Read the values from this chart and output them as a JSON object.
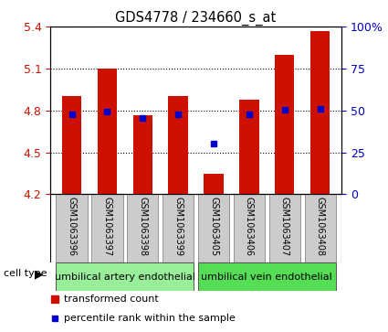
{
  "title": "GDS4778 / 234660_s_at",
  "samples": [
    "GSM1063396",
    "GSM1063397",
    "GSM1063398",
    "GSM1063399",
    "GSM1063405",
    "GSM1063406",
    "GSM1063407",
    "GSM1063408"
  ],
  "red_values": [
    4.9,
    5.1,
    4.765,
    4.9,
    4.35,
    4.875,
    5.2,
    5.37
  ],
  "blue_values": [
    4.775,
    4.795,
    4.745,
    4.775,
    4.565,
    4.775,
    4.805,
    4.81
  ],
  "ylim_left": [
    4.2,
    5.4
  ],
  "yticks_left": [
    4.2,
    4.5,
    4.8,
    5.1,
    5.4
  ],
  "ylim_right": [
    0,
    100
  ],
  "yticks_right": [
    0,
    25,
    50,
    75,
    100
  ],
  "ytick_labels_right": [
    "0",
    "25",
    "50",
    "75",
    "100%"
  ],
  "red_color": "#cc1100",
  "blue_color": "#0000cc",
  "bar_width": 0.55,
  "groups": [
    {
      "label": "umbilical artery endothelial",
      "start": 0,
      "end": 3,
      "color": "#99ee99"
    },
    {
      "label": "umbilical vein endothelial",
      "start": 4,
      "end": 7,
      "color": "#55dd55"
    }
  ],
  "cell_type_label": "cell type",
  "legend1": "transformed count",
  "legend2": "percentile rank within the sample",
  "background_color": "#ffffff",
  "tick_box_color": "#cccccc",
  "title_fontsize": 10.5,
  "axis_fontsize": 9,
  "label_fontsize": 7,
  "group_fontsize": 8,
  "legend_fontsize": 8
}
